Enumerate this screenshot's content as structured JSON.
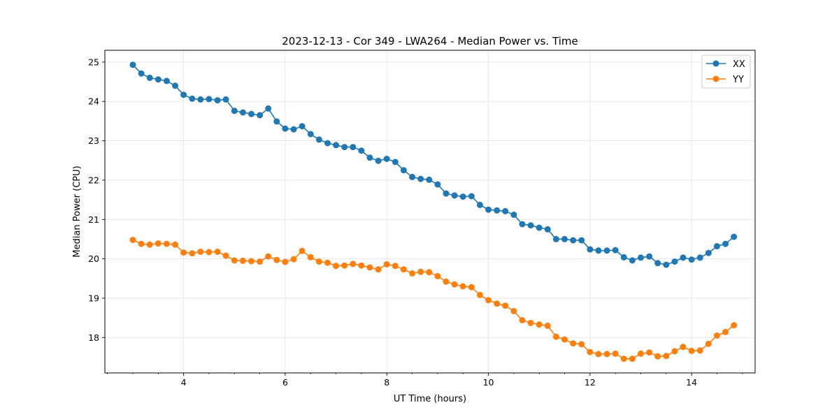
{
  "chart_data": {
    "type": "line",
    "title": "2023-12-13 - Cor 349 - LWA264 - Median Power vs. Time",
    "xlabel": "UT Time (hours)",
    "ylabel": "Median Power (CPU)",
    "xlim": [
      2.45,
      15.25
    ],
    "ylim": [
      17.1,
      25.3
    ],
    "xticks": [
      4,
      6,
      8,
      10,
      12,
      14
    ],
    "xtick_labels": [
      "4",
      "6",
      "8",
      "10",
      "12",
      "14"
    ],
    "yticks": [
      18,
      19,
      20,
      21,
      22,
      23,
      24,
      25
    ],
    "ytick_labels": [
      "18",
      "19",
      "20",
      "21",
      "22",
      "23",
      "24",
      "25"
    ],
    "grid": true,
    "legend_position": "top-right",
    "x": [
      3.0,
      3.167,
      3.333,
      3.5,
      3.667,
      3.833,
      4.0,
      4.167,
      4.333,
      4.5,
      4.667,
      4.833,
      5.0,
      5.167,
      5.333,
      5.5,
      5.667,
      5.833,
      6.0,
      6.167,
      6.333,
      6.5,
      6.667,
      6.833,
      7.0,
      7.167,
      7.333,
      7.5,
      7.667,
      7.833,
      8.0,
      8.167,
      8.333,
      8.5,
      8.667,
      8.833,
      9.0,
      9.167,
      9.333,
      9.5,
      9.667,
      9.833,
      10.0,
      10.167,
      10.333,
      10.5,
      10.667,
      10.833,
      11.0,
      11.167,
      11.333,
      11.5,
      11.667,
      11.833,
      12.0,
      12.167,
      12.333,
      12.5,
      12.667,
      12.833,
      13.0,
      13.167,
      13.333,
      13.5,
      13.667,
      13.833,
      14.0,
      14.167,
      14.333,
      14.5,
      14.667,
      14.833
    ],
    "series": [
      {
        "name": "XX",
        "color": "#1f77b4",
        "values": [
          24.93,
          24.71,
          24.6,
          24.56,
          24.52,
          24.4,
          24.17,
          24.07,
          24.05,
          24.06,
          24.03,
          24.05,
          23.76,
          23.72,
          23.68,
          23.65,
          23.82,
          23.49,
          23.31,
          23.29,
          23.37,
          23.17,
          23.03,
          22.94,
          22.89,
          22.84,
          22.84,
          22.75,
          22.57,
          22.49,
          22.54,
          22.46,
          22.25,
          22.08,
          22.03,
          22.01,
          21.89,
          21.66,
          21.61,
          21.58,
          21.59,
          21.37,
          21.25,
          21.23,
          21.21,
          21.12,
          20.88,
          20.85,
          20.79,
          20.75,
          20.5,
          20.5,
          20.47,
          20.47,
          20.24,
          20.21,
          20.21,
          20.22,
          20.04,
          19.96,
          20.03,
          20.06,
          19.89,
          19.85,
          19.93,
          20.03,
          19.98,
          20.03,
          20.15,
          20.32,
          20.38,
          20.56
        ]
      },
      {
        "name": "YY",
        "color": "#ff7f0e",
        "values": [
          20.48,
          20.38,
          20.36,
          20.39,
          20.38,
          20.36,
          20.16,
          20.14,
          20.18,
          20.17,
          20.18,
          20.08,
          19.96,
          19.95,
          19.94,
          19.93,
          20.06,
          19.97,
          19.92,
          19.99,
          20.2,
          20.04,
          19.93,
          19.9,
          19.82,
          19.83,
          19.87,
          19.83,
          19.78,
          19.73,
          19.86,
          19.82,
          19.73,
          19.63,
          19.67,
          19.66,
          19.56,
          19.42,
          19.35,
          19.3,
          19.28,
          19.08,
          18.95,
          18.86,
          18.81,
          18.67,
          18.44,
          18.37,
          18.33,
          18.3,
          18.02,
          17.95,
          17.85,
          17.83,
          17.63,
          17.58,
          17.58,
          17.59,
          17.46,
          17.46,
          17.59,
          17.62,
          17.52,
          17.53,
          17.65,
          17.76,
          17.66,
          17.67,
          17.84,
          18.05,
          18.14,
          18.31
        ]
      }
    ]
  }
}
